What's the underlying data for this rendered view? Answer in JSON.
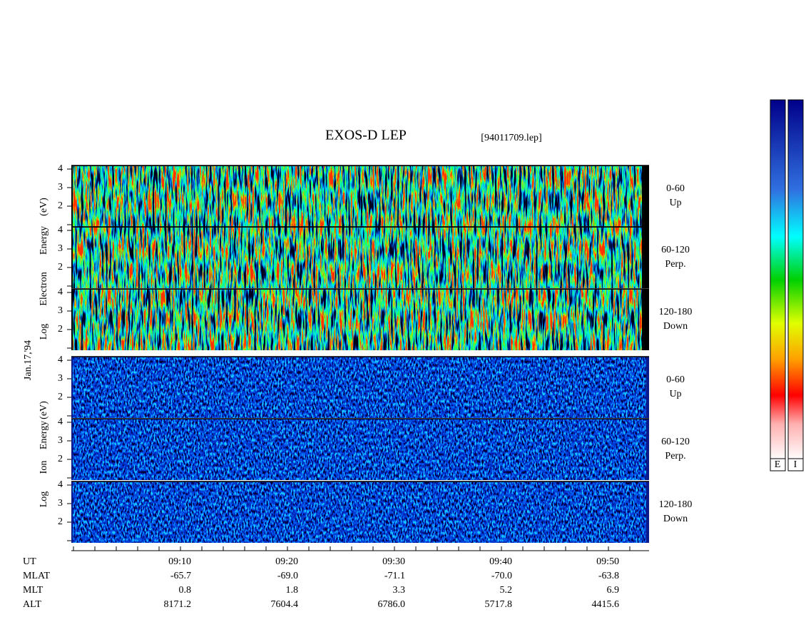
{
  "header": {
    "title": "EXOS-D LEP",
    "file": "[94011709.lep]"
  },
  "date": "Jan.17,'94",
  "electron_axis_label": [
    "Log",
    "Electron",
    "Energy",
    "(eV)"
  ],
  "ion_axis_label": [
    "Log",
    "Ion",
    "Energy",
    "(eV)"
  ],
  "panels": [
    {
      "pitch": "0-60",
      "direction": "Up"
    },
    {
      "pitch": "60-120",
      "direction": "Perp."
    },
    {
      "pitch": "120-180",
      "direction": "Down"
    },
    {
      "pitch": "0-60",
      "direction": "Up"
    },
    {
      "pitch": "60-120",
      "direction": "Perp."
    },
    {
      "pitch": "120-180",
      "direction": "Down"
    }
  ],
  "energy_ticks": [
    2,
    3,
    4
  ],
  "orbit": {
    "rows": [
      {
        "label": "UT",
        "values": [
          "09:10",
          "09:20",
          "09:30",
          "09:40",
          "09:50"
        ]
      },
      {
        "label": "MLAT",
        "values": [
          "-65.7",
          "-69.0",
          "-71.1",
          "-70.0",
          "-63.8"
        ]
      },
      {
        "label": "MLT",
        "values": [
          "0.8",
          "1.8",
          "3.3",
          "5.2",
          "6.9"
        ]
      },
      {
        "label": "ALT",
        "values": [
          "8171.2",
          "7604.4",
          "6786.0",
          "5717.8",
          "4415.6"
        ]
      }
    ]
  },
  "colorbar_labels": [
    "E",
    "I"
  ]
}
